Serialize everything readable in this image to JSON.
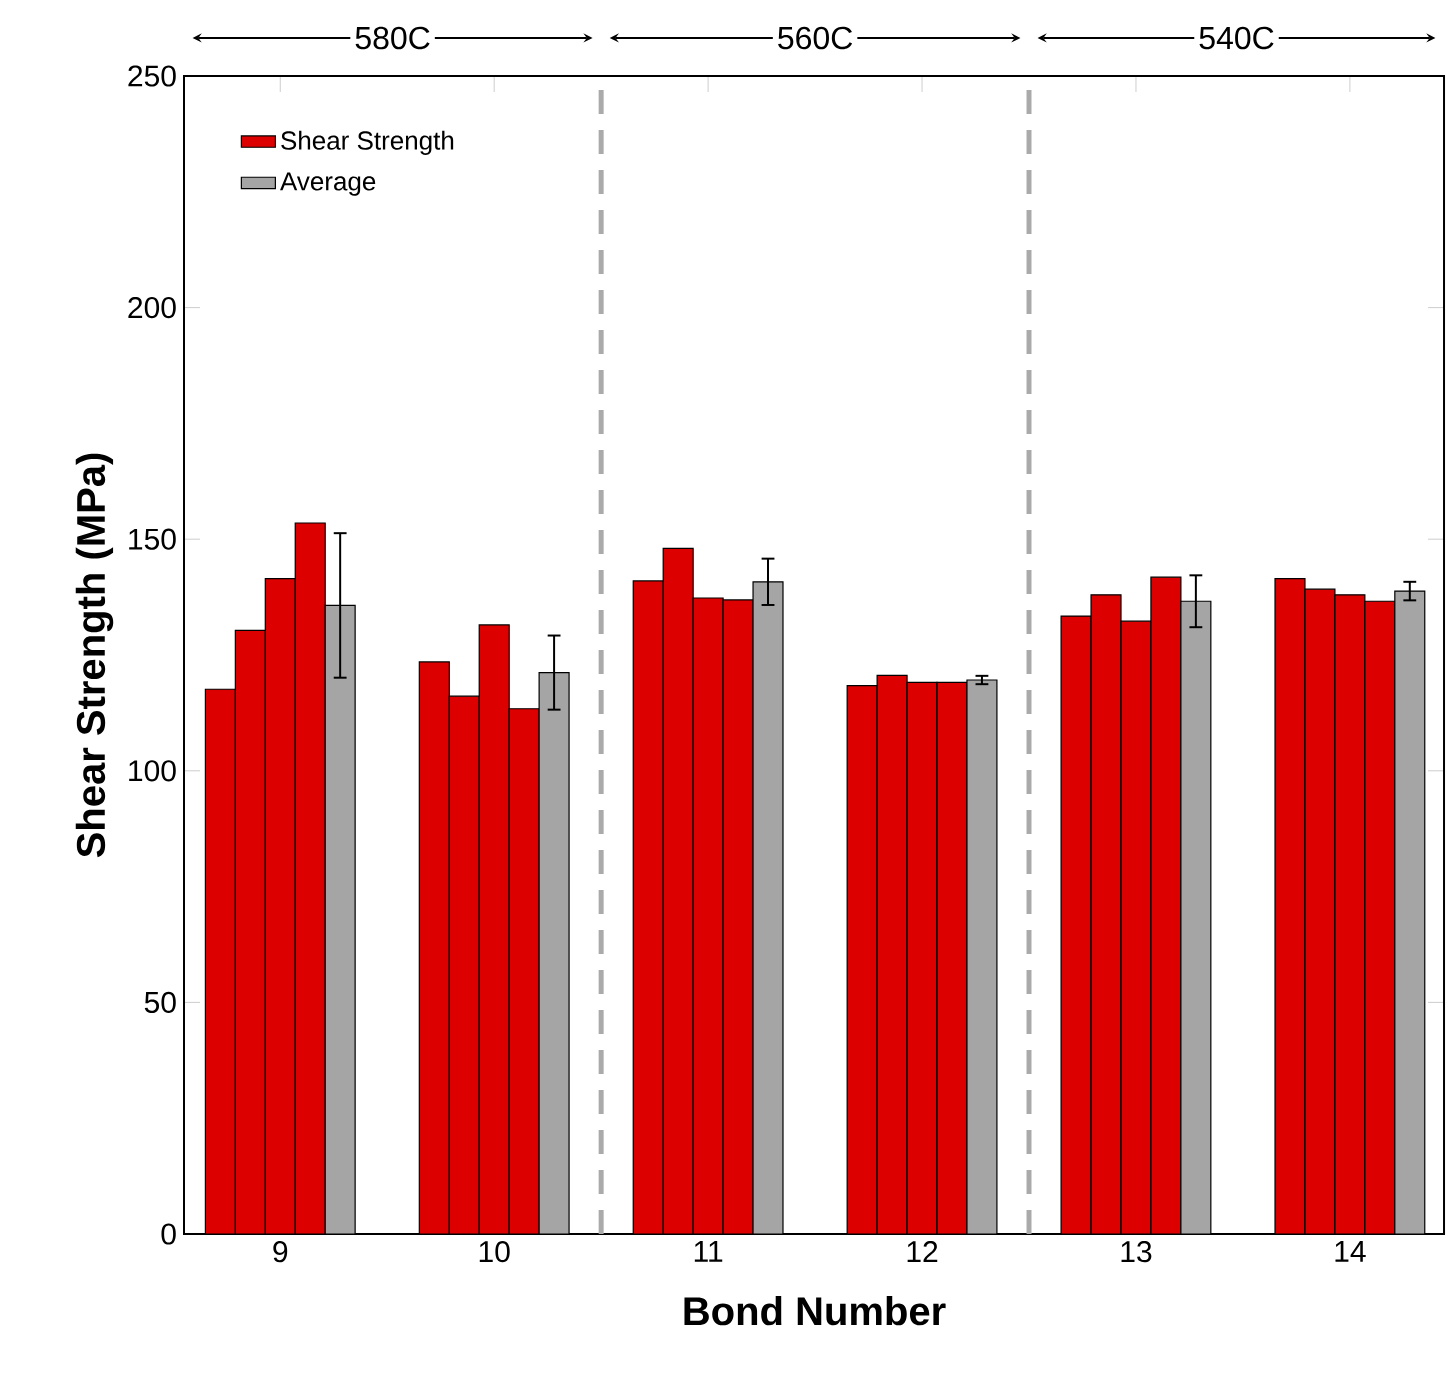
{
  "chart_data": {
    "type": "bar",
    "xlabel": "Bond Number",
    "ylabel": "Shear Strength (MPa)",
    "categories": [
      "9",
      "10",
      "11",
      "12",
      "13",
      "14"
    ],
    "series": [
      {
        "name": "Shear Strength",
        "color": "#dd0000",
        "values": [
          117.6,
          123.5,
          141.0,
          118.4,
          133.4,
          141.5
        ]
      },
      {
        "color": "#dd0000",
        "values": [
          130.3,
          116.1,
          148.0,
          120.6,
          138.0,
          139.2
        ]
      },
      {
        "color": "#dd0000",
        "values": [
          141.5,
          131.5,
          137.3,
          119.1,
          132.3,
          138.0
        ]
      },
      {
        "color": "#dd0000",
        "values": [
          153.5,
          113.4,
          136.9,
          119.1,
          141.8,
          136.6
        ]
      },
      {
        "name": "Average",
        "color": "#a5a5a5",
        "values": [
          135.7,
          121.2,
          140.8,
          119.6,
          136.6,
          138.8
        ],
        "errors": [
          15.6,
          8.0,
          5.0,
          0.9,
          5.6,
          2.0
        ]
      }
    ],
    "ylim": [
      0,
      250
    ],
    "yticks": [
      0,
      50,
      100,
      150,
      200,
      250
    ],
    "annotations": [
      "580C",
      "560C",
      "540C"
    ],
    "grid": false,
    "legend": "top left"
  }
}
